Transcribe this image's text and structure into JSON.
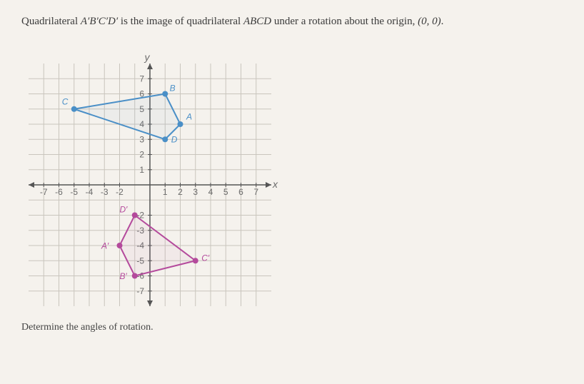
{
  "problem": {
    "prefix": "Quadrilateral ",
    "q1": "A′B′C′D′",
    "middle": " is the image of quadrilateral ",
    "q2": "ABCD",
    "suffix": " under a rotation about the origin, ",
    "origin": "(0, 0)",
    "period": "."
  },
  "prompt": "Determine the angles of rotation.",
  "chart": {
    "xmin": -8,
    "xmax": 8,
    "ymin": -8,
    "ymax": 8,
    "xticks": [
      -7,
      -6,
      -5,
      -4,
      -3,
      -2,
      1,
      2,
      3,
      4,
      5,
      6,
      7
    ],
    "yticks_pos": [
      1,
      2,
      3,
      4,
      5,
      6,
      7
    ],
    "yticks_neg": [
      -2,
      -3,
      -4,
      -5,
      -6,
      -7
    ],
    "xlabel": "x",
    "ylabel": "y",
    "grid_color": "#c9c5bd",
    "axis_color": "#555555",
    "bg": "#f5f2ed",
    "shapeA": {
      "color": "#4a8fc7",
      "fill": "rgba(74,143,199,0.05)",
      "points": {
        "A": {
          "x": 2,
          "y": 4,
          "label": "A",
          "lx": 2.4,
          "ly": 4.3
        },
        "B": {
          "x": 1,
          "y": 6,
          "label": "B",
          "lx": 1.3,
          "ly": 6.2
        },
        "C": {
          "x": -5,
          "y": 5,
          "label": "C",
          "lx": -5.8,
          "ly": 5.3
        },
        "D": {
          "x": 1,
          "y": 3,
          "label": "D",
          "lx": 1.4,
          "ly": 2.8
        }
      }
    },
    "shapeB": {
      "color": "#b44a9c",
      "fill": "rgba(180,74,156,0.05)",
      "points": {
        "A": {
          "x": -2,
          "y": -4,
          "label": "A′",
          "lx": -3.2,
          "ly": -4.2
        },
        "B": {
          "x": -1,
          "y": -6,
          "label": "B′",
          "lx": -2.0,
          "ly": -6.2
        },
        "C": {
          "x": 3,
          "y": -5,
          "label": "C′",
          "lx": 3.4,
          "ly": -5.0
        },
        "D": {
          "x": -1,
          "y": -2,
          "label": "D′",
          "lx": -2.0,
          "ly": -1.8
        }
      }
    }
  }
}
